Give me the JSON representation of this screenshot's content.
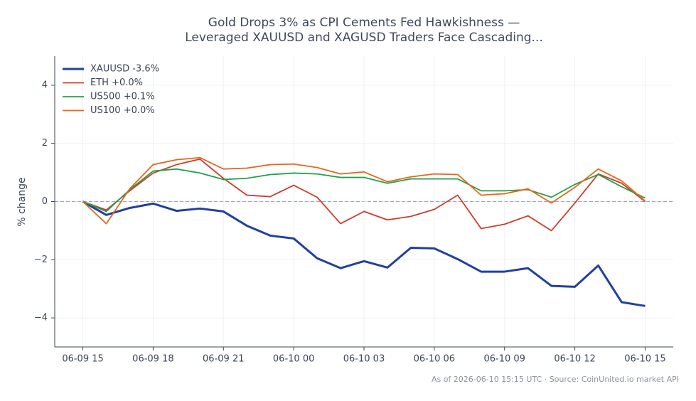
{
  "chart_data": {
    "type": "line",
    "title": "Gold Drops 3% as CPI Cements Fed Hawkishness —",
    "subtitle": "Leveraged XAUUSD and XAGUSD Traders Face Cascading...",
    "ylabel": "% change",
    "footer": "As of 2026-06-10 15:15 UTC · Source: CoinUnited.io market API",
    "x": [
      "06-09 15",
      "06-09 16",
      "06-09 17",
      "06-09 18",
      "06-09 19",
      "06-09 20",
      "06-09 21",
      "06-09 22",
      "06-09 23",
      "06-10 00",
      "06-10 01",
      "06-10 02",
      "06-10 03",
      "06-10 04",
      "06-10 05",
      "06-10 06",
      "06-10 07",
      "06-10 08",
      "06-10 09",
      "06-10 10",
      "06-10 11",
      "06-10 12",
      "06-10 13",
      "06-10 14",
      "06-10 15"
    ],
    "xticks": [
      "06-09 15",
      "06-09 18",
      "06-09 21",
      "06-10 00",
      "06-10 03",
      "06-10 06",
      "06-10 09",
      "06-10 12",
      "06-10 15"
    ],
    "ylim": [
      -5,
      5
    ],
    "yticks": [
      {
        "value": -4,
        "label": "−4"
      },
      {
        "value": -2,
        "label": "−2"
      },
      0,
      2,
      4
    ],
    "grid": true,
    "legend": "upper left",
    "series": [
      {
        "name": "XAUUSD -3.6%",
        "color": "#2040a0",
        "values": [
          0,
          -0.46,
          -0.22,
          -0.07,
          -0.32,
          -0.24,
          -0.34,
          -0.83,
          -1.17,
          -1.27,
          -1.95,
          -2.29,
          -2.05,
          -2.27,
          -1.59,
          -1.61,
          -1.98,
          -2.41,
          -2.41,
          -2.29,
          -2.9,
          -2.93,
          -2.2,
          -3.46,
          -3.59
        ]
      },
      {
        "name": "ETH +0.0%",
        "color": "#d03a2a",
        "values": [
          0,
          -0.29,
          0.37,
          0.98,
          1.27,
          1.46,
          0.8,
          0.22,
          0.17,
          0.56,
          0.15,
          -0.76,
          -0.34,
          -0.63,
          -0.51,
          -0.27,
          0.22,
          -0.93,
          -0.78,
          -0.49,
          -1.0,
          -0.05,
          0.95,
          0.63,
          0
        ]
      },
      {
        "name": "US500 +0.1%",
        "color": "#22a04a",
        "values": [
          0,
          -0.34,
          0.41,
          1.05,
          1.12,
          0.98,
          0.76,
          0.8,
          0.93,
          0.98,
          0.95,
          0.83,
          0.83,
          0.63,
          0.78,
          0.78,
          0.78,
          0.37,
          0.37,
          0.41,
          0.15,
          0.59,
          0.93,
          0.51,
          0.12
        ]
      },
      {
        "name": "US100 +0.0%",
        "color": "#e8661a",
        "values": [
          0,
          -0.76,
          0.44,
          1.27,
          1.44,
          1.51,
          1.12,
          1.15,
          1.27,
          1.29,
          1.17,
          0.95,
          1.02,
          0.68,
          0.85,
          0.95,
          0.93,
          0.22,
          0.27,
          0.44,
          -0.05,
          0.49,
          1.12,
          0.71,
          0.02
        ]
      }
    ]
  }
}
